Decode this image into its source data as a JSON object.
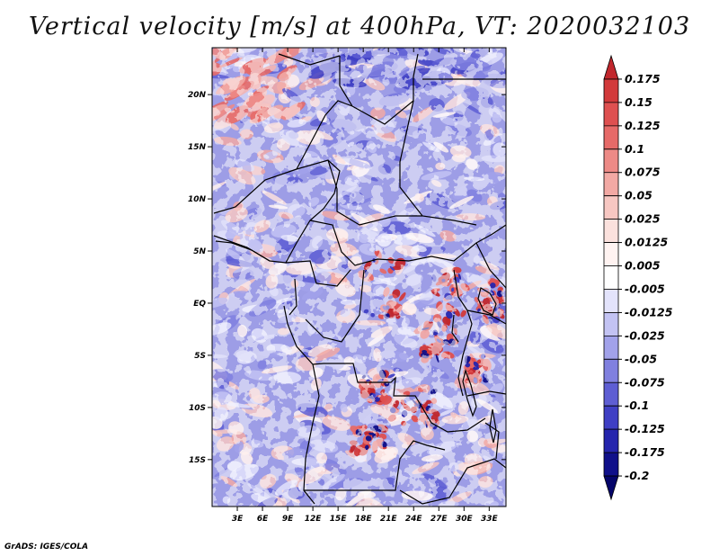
{
  "chart_data": {
    "type": "heatmap",
    "title": "Vertical velocity [m/s] at 400hPa, VT: 2020032103",
    "variable": "Vertical velocity",
    "units": "m/s",
    "level": "400hPa",
    "valid_time": "2020032103",
    "lon_range": [
      0,
      35
    ],
    "lat_range": [
      -19.5,
      24.5
    ],
    "x_ticks": [
      "3E",
      "6E",
      "9E",
      "12E",
      "15E",
      "18E",
      "21E",
      "24E",
      "27E",
      "30E",
      "33E"
    ],
    "x_tick_values": [
      3,
      6,
      9,
      12,
      15,
      18,
      21,
      24,
      27,
      30,
      33
    ],
    "y_ticks": [
      "20N",
      "15N",
      "10N",
      "5N",
      "EQ",
      "5S",
      "10S",
      "15S"
    ],
    "y_tick_values": [
      20,
      15,
      10,
      5,
      0,
      -5,
      -10,
      -15
    ],
    "colorbar": {
      "levels": [
        "0.175",
        "0.15",
        "0.125",
        "0.1",
        "0.075",
        "0.05",
        "0.025",
        "0.0125",
        "0.005",
        "-0.005",
        "-0.0125",
        "-0.025",
        "-0.05",
        "-0.075",
        "-0.1",
        "-0.125",
        "-0.175",
        "-0.2"
      ],
      "colors": [
        "#c1272d",
        "#d23a3b",
        "#de5050",
        "#e66a68",
        "#ed8a86",
        "#f2a9a4",
        "#f7c7c2",
        "#fbe1dd",
        "#fff3f1",
        "#ffffff",
        "#e3e3fb",
        "#c3c3f3",
        "#a2a2ea",
        "#8080df",
        "#5e5ed3",
        "#3f3fc4",
        "#2525ad",
        "#10108a",
        "#05056a"
      ]
    }
  },
  "footer": {
    "credit": "GrADS: IGES/COLA"
  }
}
